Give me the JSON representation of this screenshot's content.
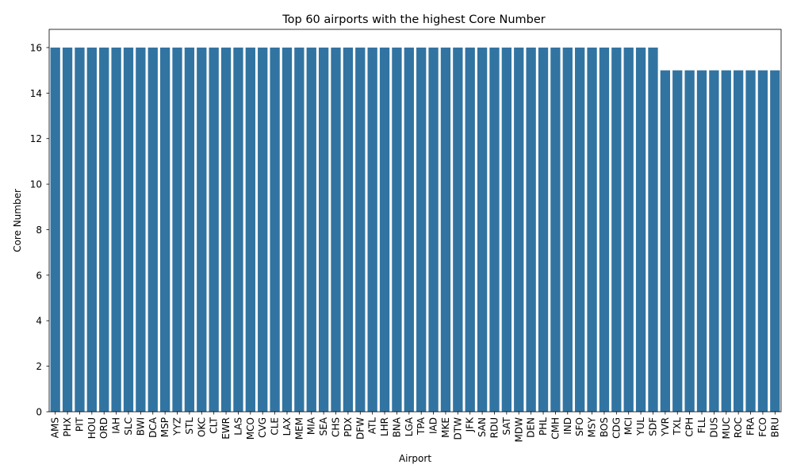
{
  "chart_data": {
    "type": "bar",
    "title": "Top 60 airports with the highest Core Number",
    "xlabel": "Airport",
    "ylabel": "Core Number",
    "ylim": [
      0,
      16.8
    ],
    "yticks": [
      0,
      2,
      4,
      6,
      8,
      10,
      12,
      14,
      16
    ],
    "grid": false,
    "categories": [
      "AMS",
      "PHX",
      "PIT",
      "HOU",
      "ORD",
      "IAH",
      "SLC",
      "BWI",
      "DCA",
      "MSP",
      "YYZ",
      "STL",
      "OKC",
      "CLT",
      "EWR",
      "LAS",
      "MCO",
      "CVG",
      "CLE",
      "LAX",
      "MEM",
      "MIA",
      "SEA",
      "CHS",
      "PDX",
      "DFW",
      "ATL",
      "LHR",
      "BNA",
      "LGA",
      "TPA",
      "IAD",
      "MKE",
      "DTW",
      "JFK",
      "SAN",
      "RDU",
      "SAT",
      "MDW",
      "DEN",
      "PHL",
      "CMH",
      "IND",
      "SFO",
      "MSY",
      "BOS",
      "CDG",
      "MCI",
      "YUL",
      "SDF",
      "YVR",
      "TXL",
      "CPH",
      "FLL",
      "DUS",
      "MUC",
      "ROC",
      "FRA",
      "FCO",
      "BRU"
    ],
    "values": [
      16,
      16,
      16,
      16,
      16,
      16,
      16,
      16,
      16,
      16,
      16,
      16,
      16,
      16,
      16,
      16,
      16,
      16,
      16,
      16,
      16,
      16,
      16,
      16,
      16,
      16,
      16,
      16,
      16,
      16,
      16,
      16,
      16,
      16,
      16,
      16,
      16,
      16,
      16,
      16,
      16,
      16,
      16,
      16,
      16,
      16,
      16,
      16,
      16,
      16,
      15,
      15,
      15,
      15,
      15,
      15,
      15,
      15,
      15,
      15
    ],
    "bar_color": "#3274a1"
  }
}
